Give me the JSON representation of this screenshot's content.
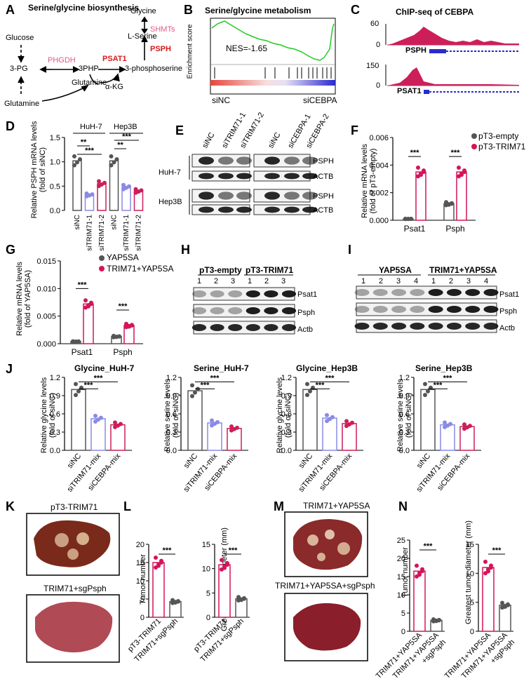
{
  "colors": {
    "nc": "#555555",
    "tr": "#8a8ae6",
    "ce": "#cc1f5a",
    "pink": "#e05a8a",
    "red": "#d7191c",
    "mag": "#d4145a"
  },
  "labels": {
    "A": "A",
    "B": "B",
    "C": "C",
    "D": "D",
    "E": "E",
    "F": "F",
    "G": "G",
    "H": "H",
    "I": "I",
    "J": "J",
    "K": "K",
    "L": "L",
    "M": "M",
    "N": "N"
  },
  "A": {
    "title": "Serine/glycine biosynthesis",
    "glucose": "Glucose",
    "pg": "3-PG",
    "phgdh": "PHGDH",
    "php": "3PHP",
    "psat1": "PSAT1",
    "pser": "3-phosphoserine",
    "glycine": "Glycine",
    "shmts": "SHMTs",
    "lser": "L-Serine",
    "psph": "PSPH",
    "gln1": "Glutamine",
    "akg": "α-KG",
    "gln2": "Glutamine"
  },
  "B": {
    "title": "Serine/glycine metabolism",
    "ylabel": "Enrichment score",
    "nes": "NES=-1.65",
    "left": "siNC",
    "right": "siCEBPA"
  },
  "C": {
    "title": "ChIP-seq of CEBPA",
    "t1max": "60",
    "t1min": "0",
    "gene1": "PSPH",
    "t2max": "150",
    "t2min": "0",
    "gene2": "PSAT1"
  },
  "D": {
    "ylabel1": "Relative PSPH mRNA levels",
    "ylabel2": "(fold of siNC)",
    "g1": "HuH-7",
    "g2": "Hep3B",
    "ticks": [
      "0.0",
      "0.5",
      "1.0",
      "1.5"
    ],
    "sig": [
      "***",
      "**",
      "**",
      "***"
    ],
    "cats": [
      "siNC",
      "siTRIM71-1",
      "siTRIM71-2",
      "siNC",
      "siTRIM71-1",
      "siTRIM71-2"
    ],
    "values": [
      1.02,
      0.32,
      0.55,
      1.02,
      0.48,
      0.4
    ]
  },
  "E": {
    "lanes": [
      "siNC",
      "siTRIM71-1",
      "siTRIM71-2",
      "siNC",
      "siCEBPA-1",
      "siCEBPA-2"
    ],
    "cl1": "HuH-7",
    "cl2": "Hep3B",
    "p1": "PSPH",
    "a1": "ACTB",
    "p2": "PSPH",
    "a2": "ACTB"
  },
  "F": {
    "ylabel1": "Relative mRNA levels",
    "ylabel2": "(fold of pT3-empty)",
    "leg1": "pT3-empty",
    "leg2": "pT3-TRIM71",
    "ticks": [
      "0.000",
      "0.002",
      "0.004",
      "0.006"
    ],
    "cats": [
      "Psat1",
      "Psph"
    ],
    "sig": [
      "***",
      "***"
    ],
    "series": [
      {
        "name": "pT3-empty",
        "values": [
          0.0001,
          0.0012
        ]
      },
      {
        "name": "pT3-TRIM71",
        "values": [
          0.0035,
          0.0035
        ]
      }
    ]
  },
  "G": {
    "ylabel1": "Relative mRNA levels",
    "ylabel2": "(fold of YAP5SA)",
    "leg1": "YAP5SA",
    "leg2": "TRIM71+YAP5SA",
    "ticks": [
      "0.000",
      "0.005",
      "0.010",
      "0.015"
    ],
    "cats": [
      "Psat1",
      "Psph"
    ],
    "sig": [
      "***",
      "***"
    ],
    "series": [
      {
        "name": "YAP5SA",
        "values": [
          0.0004,
          0.0013
        ]
      },
      {
        "name": "TRIM71+YAP5SA",
        "values": [
          0.0072,
          0.0033
        ]
      }
    ]
  },
  "H": {
    "g1": "pT3-empty",
    "g2": "pT3-TRIM71",
    "lanes": [
      "1",
      "2",
      "3",
      "1",
      "2",
      "3"
    ],
    "r1": "Psat1",
    "r2": "Psph",
    "r3": "Actb"
  },
  "I": {
    "g1": "YAP5SA",
    "g2": "TRIM71+YAP5SA",
    "lanes": [
      "1",
      "2",
      "3",
      "4",
      "1",
      "2",
      "3",
      "4"
    ],
    "r1": "Psat1",
    "r2": "Psph",
    "r3": "Actb"
  },
  "J": {
    "ticks": [
      "0.0",
      "0.3",
      "0.6",
      "0.9",
      "1.2"
    ],
    "cats": [
      "siNC",
      "siTRIM71-mix",
      "siCEBPA-mix"
    ],
    "sig": [
      "***",
      "***"
    ],
    "ylabel2": "(fold of siNC)",
    "charts": [
      {
        "title": "Glycine_HuH-7",
        "ylabel": "Relative glycine levels",
        "values": [
          1.0,
          0.52,
          0.42
        ]
      },
      {
        "title": "Serine_HuH-7",
        "ylabel": "Relative serine levels",
        "values": [
          0.98,
          0.45,
          0.36
        ]
      },
      {
        "title": "Glycine_Hep3B",
        "ylabel": "Relative glycine levels",
        "values": [
          1.0,
          0.53,
          0.44
        ]
      },
      {
        "title": "Serine_Hep3B",
        "ylabel": "Relative serine levels",
        "values": [
          1.0,
          0.42,
          0.39
        ]
      }
    ]
  },
  "K": {
    "l1": "pT3-TRIM71",
    "l2": "TRIM71+sgPsph"
  },
  "L": {
    "y1": "Tumor number",
    "y2": "Greatest tumor diameter (mm)",
    "t1": [
      "0",
      "5",
      "10",
      "15",
      "20"
    ],
    "t2": [
      "0",
      "5",
      "10",
      "15"
    ],
    "c1": "pT3-TRIM71",
    "c2": "TRIM71+sgPsph",
    "sig": "***",
    "v1": [
      15,
      4.3
    ],
    "v2": [
      10.8,
      3.8
    ]
  },
  "M": {
    "l1": "TRIM71+YAP5SA",
    "l2": "TRIM71+YAP5SA+sgPsph"
  },
  "N": {
    "y1": "Tumor number",
    "y2": "Greatest tumor diameter (mm)",
    "t1": [
      "0",
      "5",
      "10",
      "15",
      "20",
      "25"
    ],
    "t2": [
      "0",
      "5",
      "10",
      "15"
    ],
    "c1": "TRIM71+YAP5SA",
    "c2a": "TRIM71+YAP5SA",
    "c2b": "+sgPsph",
    "sig": "***",
    "v1": [
      16.5,
      3
    ],
    "v2": [
      11,
      4.5
    ]
  },
  "chart_data": [
    {
      "type": "bar",
      "panel": "D",
      "title": "Relative PSPH mRNA levels (fold of siNC)",
      "categories": [
        "HuH-7 siNC",
        "HuH-7 siTRIM71-1",
        "HuH-7 siTRIM71-2",
        "Hep3B siNC",
        "Hep3B siTRIM71-1",
        "Hep3B siTRIM71-2"
      ],
      "values": [
        1.02,
        0.32,
        0.55,
        1.02,
        0.48,
        0.4
      ],
      "ylim": [
        0,
        1.5
      ]
    },
    {
      "type": "bar",
      "panel": "F",
      "categories": [
        "Psat1",
        "Psph"
      ],
      "series": [
        {
          "name": "pT3-empty",
          "values": [
            0.0001,
            0.0012
          ]
        },
        {
          "name": "pT3-TRIM71",
          "values": [
            0.0035,
            0.0035
          ]
        }
      ],
      "ylim": [
        0,
        0.006
      ]
    },
    {
      "type": "bar",
      "panel": "G",
      "categories": [
        "Psat1",
        "Psph"
      ],
      "series": [
        {
          "name": "YAP5SA",
          "values": [
            0.0004,
            0.0013
          ]
        },
        {
          "name": "TRIM71+YAP5SA",
          "values": [
            0.0072,
            0.0033
          ]
        }
      ],
      "ylim": [
        0,
        0.015
      ]
    },
    {
      "type": "bar",
      "panel": "J",
      "title": "Glycine_HuH-7",
      "categories": [
        "siNC",
        "siTRIM71-mix",
        "siCEBPA-mix"
      ],
      "values": [
        1.0,
        0.52,
        0.42
      ],
      "ylim": [
        0,
        1.2
      ]
    },
    {
      "type": "bar",
      "panel": "J",
      "title": "Serine_HuH-7",
      "categories": [
        "siNC",
        "siTRIM71-mix",
        "siCEBPA-mix"
      ],
      "values": [
        0.98,
        0.45,
        0.36
      ],
      "ylim": [
        0,
        1.2
      ]
    },
    {
      "type": "bar",
      "panel": "J",
      "title": "Glycine_Hep3B",
      "categories": [
        "siNC",
        "siTRIM71-mix",
        "siCEBPA-mix"
      ],
      "values": [
        1.0,
        0.53,
        0.44
      ],
      "ylim": [
        0,
        1.2
      ]
    },
    {
      "type": "bar",
      "panel": "J",
      "title": "Serine_Hep3B",
      "categories": [
        "siNC",
        "siTRIM71-mix",
        "siCEBPA-mix"
      ],
      "values": [
        1.0,
        0.42,
        0.39
      ],
      "ylim": [
        0,
        1.2
      ]
    },
    {
      "type": "bar",
      "panel": "L",
      "ylabel": "Tumor number",
      "categories": [
        "pT3-TRIM71",
        "TRIM71+sgPsph"
      ],
      "values": [
        15,
        4.3
      ],
      "ylim": [
        0,
        20
      ]
    },
    {
      "type": "bar",
      "panel": "L",
      "ylabel": "Greatest tumor diameter (mm)",
      "categories": [
        "pT3-TRIM71",
        "TRIM71+sgPsph"
      ],
      "values": [
        10.8,
        3.8
      ],
      "ylim": [
        0,
        15
      ]
    },
    {
      "type": "bar",
      "panel": "N",
      "ylabel": "Tumor number",
      "categories": [
        "TRIM71+YAP5SA",
        "TRIM71+YAP5SA+sgPsph"
      ],
      "values": [
        16.5,
        3
      ],
      "ylim": [
        0,
        25
      ]
    },
    {
      "type": "bar",
      "panel": "N",
      "ylabel": "Greatest tumor diameter (mm)",
      "categories": [
        "TRIM71+YAP5SA",
        "TRIM71+YAP5SA+sgPsph"
      ],
      "values": [
        11,
        4.5
      ],
      "ylim": [
        0,
        15
      ]
    }
  ]
}
